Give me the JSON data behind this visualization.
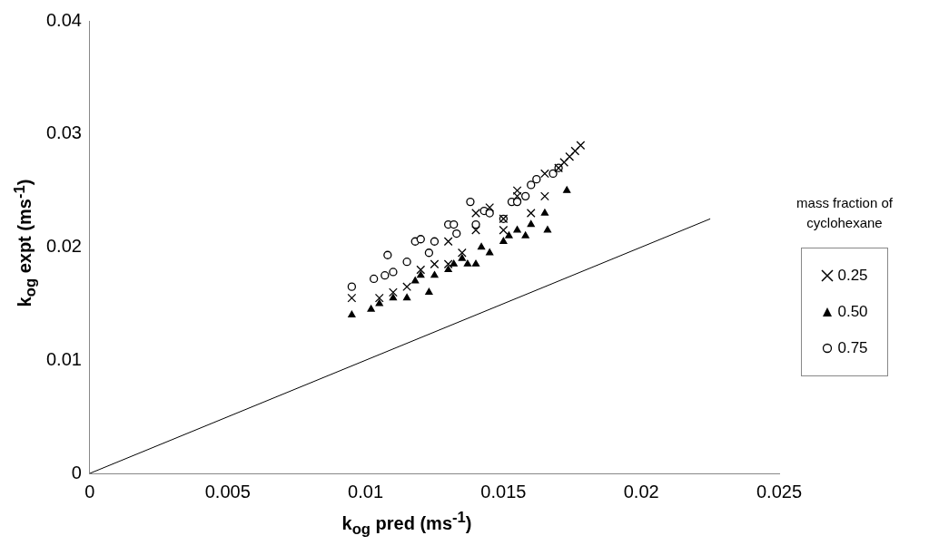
{
  "chart_data": {
    "type": "scatter",
    "xlabel": "k$_{og}$ pred (ms$^{-1}$)",
    "ylabel": "k$_{og}$ expt (ms$^{-1}$)",
    "legend_title": "mass fraction of cyclohexane",
    "legend": "right",
    "grid": false,
    "xlim": [
      0,
      0.025
    ],
    "xticks": [
      0,
      0.005,
      0.01,
      0.015,
      0.02,
      0.025
    ],
    "ylim": [
      0,
      0.04
    ],
    "yticks": [
      0,
      0.01,
      0.02,
      0.03,
      0.04
    ],
    "series": [
      {
        "name": "0.25",
        "color": "#000000",
        "marker": "cross",
        "x": [
          0.0095,
          0.0105,
          0.011,
          0.0115,
          0.012,
          0.0125,
          0.013,
          0.013,
          0.0135,
          0.014,
          0.014,
          0.0145,
          0.015,
          0.015,
          0.0155,
          0.0155,
          0.016,
          0.0165,
          0.0165,
          0.017,
          0.0172,
          0.0174,
          0.0176,
          0.0178
        ],
        "values": [
          0.0155,
          0.0155,
          0.016,
          0.0165,
          0.018,
          0.0185,
          0.0185,
          0.0205,
          0.0195,
          0.0215,
          0.023,
          0.0235,
          0.0215,
          0.0225,
          0.025,
          0.0245,
          0.023,
          0.0245,
          0.0265,
          0.027,
          0.0275,
          0.028,
          0.0285,
          0.029
        ]
      },
      {
        "name": "0.50",
        "color": "#000000",
        "marker": "triangle",
        "x": [
          0.0095,
          0.0102,
          0.0105,
          0.011,
          0.0115,
          0.0118,
          0.012,
          0.0123,
          0.0125,
          0.013,
          0.0132,
          0.0135,
          0.0137,
          0.014,
          0.0142,
          0.0145,
          0.015,
          0.0152,
          0.0155,
          0.0158,
          0.016,
          0.0165,
          0.0166,
          0.0173
        ],
        "values": [
          0.014,
          0.0145,
          0.015,
          0.0155,
          0.0155,
          0.017,
          0.0175,
          0.016,
          0.0175,
          0.018,
          0.0185,
          0.019,
          0.0185,
          0.0185,
          0.02,
          0.0195,
          0.0205,
          0.021,
          0.0215,
          0.021,
          0.022,
          0.023,
          0.0215,
          0.025
        ]
      },
      {
        "name": "0.75",
        "color": "#000000",
        "marker": "circle",
        "x": [
          0.0095,
          0.0103,
          0.0107,
          0.0108,
          0.011,
          0.0115,
          0.0118,
          0.012,
          0.0123,
          0.0125,
          0.013,
          0.0132,
          0.0133,
          0.0138,
          0.014,
          0.0143,
          0.0145,
          0.015,
          0.0153,
          0.0155,
          0.0158,
          0.016,
          0.0162,
          0.0168,
          0.017
        ],
        "values": [
          0.0165,
          0.0172,
          0.0175,
          0.0193,
          0.0178,
          0.0187,
          0.0205,
          0.0207,
          0.0195,
          0.0205,
          0.022,
          0.022,
          0.0212,
          0.024,
          0.022,
          0.0232,
          0.023,
          0.0225,
          0.024,
          0.024,
          0.0245,
          0.0255,
          0.026,
          0.0265,
          0.027
        ]
      },
      {
        "type": "line",
        "color": "#000000",
        "marker": "none",
        "x": [
          0,
          0.0225
        ],
        "values": [
          0,
          0.0225
        ]
      }
    ]
  }
}
